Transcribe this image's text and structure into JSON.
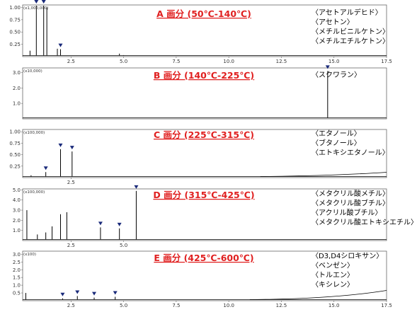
{
  "chart_data": [
    {
      "type": "line",
      "title": "A 画分 (50℃-140℃)",
      "y_multiplier": "(x1,000,000)",
      "yticks": [
        "0.25",
        "0.50",
        "0.75",
        "1.00"
      ],
      "ylim": [
        0,
        1.05
      ],
      "xticks": [
        "2.5",
        "5.0",
        "7.5",
        "10.0",
        "12.5",
        "15.0",
        "17.5"
      ],
      "xlim": [
        0.2,
        17.5
      ],
      "legend": [
        "〈アセトアルデヒド〉",
        "〈アセトン〉",
        "〈メチルビニルケトン〉",
        "〈メチルエチルケトン〉"
      ],
      "peaks": [
        {
          "x": 0.55,
          "y": 0.12
        },
        {
          "x": 0.85,
          "y": 1.05,
          "marked": true
        },
        {
          "x": 1.2,
          "y": 1.05,
          "marked": true
        },
        {
          "x": 1.35,
          "y": 1.0
        },
        {
          "x": 1.85,
          "y": 0.16
        },
        {
          "x": 2.0,
          "y": 0.15,
          "marked": true
        },
        {
          "x": 4.8,
          "y": 0.06
        },
        {
          "x": 5.0,
          "y": 0.03
        }
      ]
    },
    {
      "type": "line",
      "title": "B 画分 (140℃-225℃)",
      "y_multiplier": "(x10,000)",
      "yticks": [
        "1.0",
        "2.0",
        "3.0"
      ],
      "ylim": [
        0,
        3.3
      ],
      "xticks": [],
      "xlim": [
        0.2,
        17.5
      ],
      "legend": [
        "〈スクワラン〉"
      ],
      "peaks": [
        {
          "x": 14.7,
          "y": 3.1,
          "marked": true
        }
      ]
    },
    {
      "type": "line",
      "title": "C 画分 (225℃-315℃)",
      "y_multiplier": "(x100,000)",
      "yticks": [
        "0.25",
        "0.50",
        "0.75",
        "1.00"
      ],
      "ylim": [
        0,
        1.05
      ],
      "xticks": [
        "2.5"
      ],
      "xlim": [
        0.2,
        17.5
      ],
      "legend": [
        "〈エタノール〉",
        "〈ブタノール〉",
        "〈エトキシエタノール〉"
      ],
      "peaks": [
        {
          "x": 0.6,
          "y": 0.05
        },
        {
          "x": 1.3,
          "y": 0.12,
          "marked": true
        },
        {
          "x": 2.0,
          "y": 0.62,
          "marked": true
        },
        {
          "x": 2.55,
          "y": 0.57,
          "marked": true
        }
      ]
    },
    {
      "type": "line",
      "title": "D 画分 (315℃-425℃)",
      "y_multiplier": "(x100,000)",
      "yticks": [
        "1.0",
        "2.0",
        "3.0",
        "4.0",
        "5.0"
      ],
      "ylim": [
        0,
        5.1
      ],
      "xticks": [
        "2.5",
        "5.0"
      ],
      "xlim": [
        0.2,
        17.5
      ],
      "legend": [
        "〈メタクリル酸メチル〉",
        "〈メタクリル酸ブチル〉",
        "〈アクリル酸ブチル〉",
        "〈メタクリル酸エトキシエチル〉"
      ],
      "peaks": [
        {
          "x": 0.4,
          "y": 3.0
        },
        {
          "x": 0.9,
          "y": 0.6
        },
        {
          "x": 1.3,
          "y": 0.8
        },
        {
          "x": 1.6,
          "y": 1.4
        },
        {
          "x": 2.0,
          "y": 2.6
        },
        {
          "x": 2.3,
          "y": 2.8
        },
        {
          "x": 3.9,
          "y": 1.3,
          "marked": true
        },
        {
          "x": 4.8,
          "y": 1.2,
          "marked": true
        },
        {
          "x": 5.6,
          "y": 4.9,
          "marked": true
        }
      ]
    },
    {
      "type": "line",
      "title": "E 画分 (425℃-600℃)",
      "y_multiplier": "(x100)",
      "yticks": [
        "0.5",
        "1.0",
        "1.5",
        "2.0",
        "2.5",
        "3.0"
      ],
      "ylim": [
        0,
        3.2
      ],
      "xticks": [
        "2.5",
        "5.0",
        "7.5",
        "10.0",
        "12.5",
        "15.0",
        "17.5"
      ],
      "xlim": [
        0.2,
        17.5
      ],
      "legend": [
        "〈D3,D4シロキサン〉",
        "〈ベンゼン〉",
        "〈トルエン〉",
        "〈キシレン〉"
      ],
      "peaks": [
        {
          "x": 0.35,
          "y": 0.5
        },
        {
          "x": 2.1,
          "y": 0.15,
          "marked": true
        },
        {
          "x": 2.8,
          "y": 0.3,
          "marked": true
        },
        {
          "x": 3.6,
          "y": 0.2,
          "marked": true
        },
        {
          "x": 4.6,
          "y": 0.25,
          "marked": true
        }
      ]
    }
  ]
}
